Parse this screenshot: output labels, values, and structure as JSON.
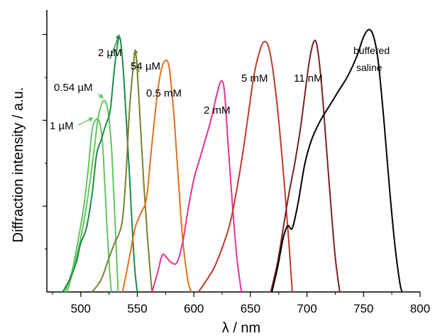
{
  "chart_data": {
    "type": "line",
    "xlabel": "λ / nm",
    "ylabel": "Diffraction intensity / a.u.",
    "xlim": [
      470,
      800
    ],
    "ylim": [
      0,
      1.15
    ],
    "xticks": [
      500,
      550,
      600,
      650,
      700,
      750,
      800
    ],
    "xtick_labels": [
      "500",
      "550",
      "600",
      "650",
      "700",
      "750",
      "800"
    ],
    "y_tick_labels_shown": false,
    "grid": false,
    "legend": "none",
    "series": [
      {
        "name": "1 µM",
        "color": "#62c462",
        "points": [
          [
            486,
            0
          ],
          [
            492,
            0.08
          ],
          [
            498,
            0.22
          ],
          [
            503,
            0.36
          ],
          [
            507,
            0.52
          ],
          [
            510,
            0.66
          ],
          [
            513,
            0.7
          ],
          [
            516,
            0.7
          ],
          [
            519,
            0.62
          ],
          [
            521,
            0.46
          ],
          [
            523,
            0.28
          ],
          [
            525,
            0.12
          ],
          [
            527,
            0
          ]
        ]
      },
      {
        "name": "0.54 µM",
        "color": "#5ec65e",
        "points": [
          [
            488,
            0
          ],
          [
            494,
            0.1
          ],
          [
            500,
            0.22
          ],
          [
            506,
            0.38
          ],
          [
            511,
            0.55
          ],
          [
            515,
            0.7
          ],
          [
            518,
            0.76
          ],
          [
            521,
            0.78
          ],
          [
            524,
            0.74
          ],
          [
            527,
            0.6
          ],
          [
            529,
            0.42
          ],
          [
            531,
            0.22
          ],
          [
            533,
            0
          ]
        ]
      },
      {
        "name": "2 µM",
        "color": "#1e8a44",
        "points": [
          [
            484,
            0
          ],
          [
            490,
            0.05
          ],
          [
            496,
            0.12
          ],
          [
            500,
            0.2
          ],
          [
            505,
            0.26
          ],
          [
            510,
            0.4
          ],
          [
            514,
            0.56
          ],
          [
            518,
            0.62
          ],
          [
            522,
            0.68
          ],
          [
            526,
            0.74
          ],
          [
            530,
            0.92
          ],
          [
            534,
            1.04
          ],
          [
            537,
            0.94
          ],
          [
            540,
            0.72
          ],
          [
            543,
            0.48
          ],
          [
            546,
            0.22
          ],
          [
            548,
            0.08
          ],
          [
            550,
            0
          ]
        ]
      },
      {
        "name": "54 µM",
        "color": "#7a7f33",
        "points": [
          [
            510,
            0
          ],
          [
            518,
            0.05
          ],
          [
            525,
            0.14
          ],
          [
            530,
            0.2
          ],
          [
            534,
            0.24
          ],
          [
            537,
            0.3
          ],
          [
            540,
            0.48
          ],
          [
            543,
            0.74
          ],
          [
            546,
            0.9
          ],
          [
            548,
            0.98
          ],
          [
            550,
            0.9
          ],
          [
            553,
            0.66
          ],
          [
            556,
            0.42
          ],
          [
            559,
            0.22
          ],
          [
            562,
            0.05
          ],
          [
            563,
            0
          ]
        ]
      },
      {
        "name": "0.5 mM",
        "color": "#e0701c",
        "points": [
          [
            537,
            0
          ],
          [
            543,
            0.14
          ],
          [
            548,
            0.26
          ],
          [
            553,
            0.32
          ],
          [
            558,
            0.38
          ],
          [
            562,
            0.56
          ],
          [
            566,
            0.74
          ],
          [
            570,
            0.88
          ],
          [
            574,
            0.94
          ],
          [
            578,
            0.92
          ],
          [
            582,
            0.74
          ],
          [
            586,
            0.48
          ],
          [
            590,
            0.22
          ],
          [
            595,
            0.04
          ],
          [
            598,
            0
          ]
        ]
      },
      {
        "name": "2 mM",
        "color": "#e8318f",
        "points": [
          [
            563,
            0
          ],
          [
            568,
            0.08
          ],
          [
            572,
            0.15
          ],
          [
            576,
            0.14
          ],
          [
            580,
            0.12
          ],
          [
            585,
            0.12
          ],
          [
            590,
            0.2
          ],
          [
            595,
            0.34
          ],
          [
            600,
            0.46
          ],
          [
            605,
            0.54
          ],
          [
            610,
            0.62
          ],
          [
            615,
            0.7
          ],
          [
            620,
            0.8
          ],
          [
            624,
            0.86
          ],
          [
            627,
            0.82
          ],
          [
            630,
            0.62
          ],
          [
            634,
            0.36
          ],
          [
            638,
            0.14
          ],
          [
            642,
            0
          ]
        ]
      },
      {
        "name": "5 mM",
        "color": "#c0392b",
        "points": [
          [
            604,
            0
          ],
          [
            610,
            0.04
          ],
          [
            618,
            0.1
          ],
          [
            625,
            0.18
          ],
          [
            632,
            0.28
          ],
          [
            638,
            0.42
          ],
          [
            643,
            0.56
          ],
          [
            648,
            0.72
          ],
          [
            653,
            0.88
          ],
          [
            658,
            0.98
          ],
          [
            662,
            1.02
          ],
          [
            666,
            1.0
          ],
          [
            670,
            0.9
          ],
          [
            675,
            0.7
          ],
          [
            680,
            0.44
          ],
          [
            684,
            0.2
          ],
          [
            687,
            0
          ]
        ]
      },
      {
        "name": "11 nM",
        "color": "#7a2020",
        "points": [
          [
            668,
            0
          ],
          [
            674,
            0.12
          ],
          [
            679,
            0.26
          ],
          [
            684,
            0.4
          ],
          [
            689,
            0.52
          ],
          [
            694,
            0.66
          ],
          [
            698,
            0.8
          ],
          [
            702,
            0.94
          ],
          [
            706,
            1.02
          ],
          [
            709,
            1.0
          ],
          [
            713,
            0.84
          ],
          [
            717,
            0.6
          ],
          [
            721,
            0.36
          ],
          [
            725,
            0.14
          ],
          [
            729,
            0
          ]
        ]
      },
      {
        "name": "buffered saline",
        "color": "#000000",
        "points": [
          [
            669,
            0
          ],
          [
            674,
            0.1
          ],
          [
            679,
            0.22
          ],
          [
            683,
            0.27
          ],
          [
            687,
            0.26
          ],
          [
            692,
            0.36
          ],
          [
            698,
            0.52
          ],
          [
            704,
            0.62
          ],
          [
            712,
            0.7
          ],
          [
            720,
            0.76
          ],
          [
            728,
            0.82
          ],
          [
            736,
            0.88
          ],
          [
            744,
            0.96
          ],
          [
            750,
            1.04
          ],
          [
            755,
            1.07
          ],
          [
            759,
            1.04
          ],
          [
            763,
            0.94
          ],
          [
            768,
            0.7
          ],
          [
            773,
            0.42
          ],
          [
            778,
            0.18
          ],
          [
            782,
            0.04
          ],
          [
            784,
            0
          ]
        ]
      }
    ],
    "annotations": [
      {
        "text": "1 µM",
        "target": [
          511,
          0.71
        ]
      },
      {
        "text": "0.54 µM",
        "target": [
          520,
          0.79
        ]
      },
      {
        "text": "2 µM",
        "target": [
          534,
          1.05
        ]
      },
      {
        "text": "54 µM",
        "target": [
          548,
          0.99
        ]
      },
      {
        "text": "0.5 mM"
      },
      {
        "text": "2 mM"
      },
      {
        "text": "5 mM"
      },
      {
        "text": "11 nM"
      },
      {
        "text": "buffered"
      },
      {
        "text": "saline"
      }
    ]
  }
}
